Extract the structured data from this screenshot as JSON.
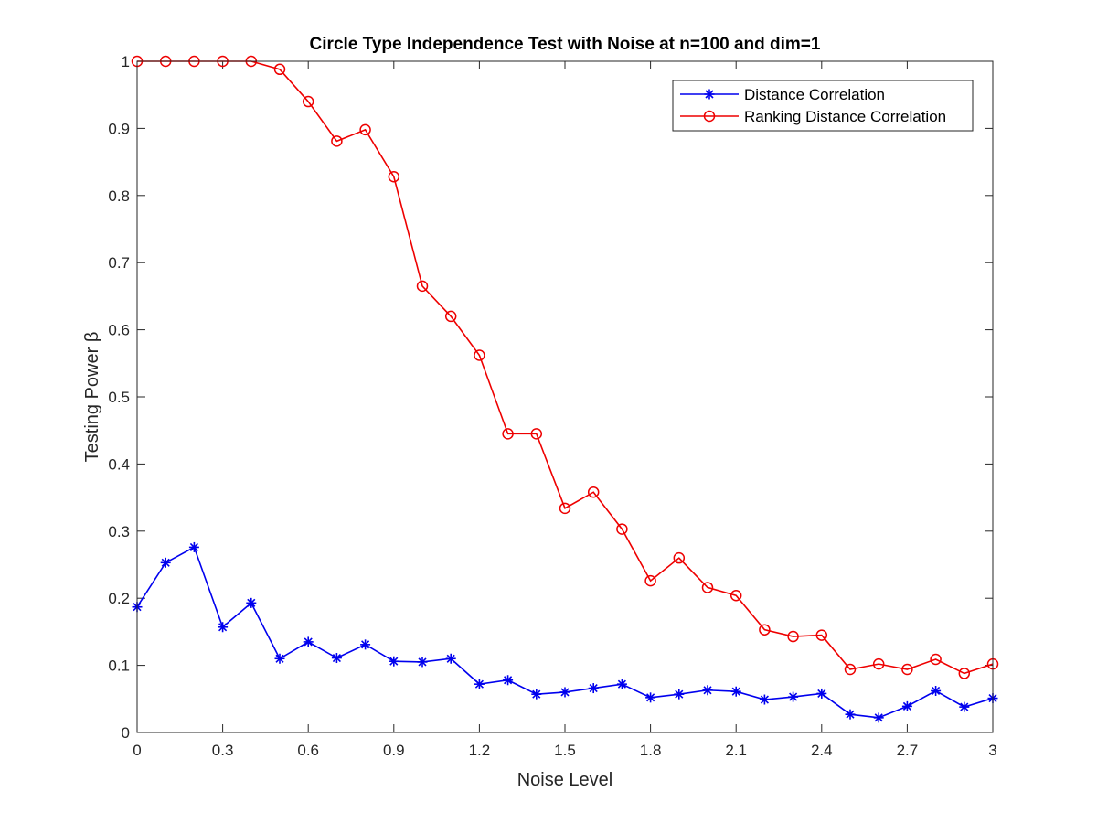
{
  "chart_data": {
    "type": "line",
    "title": "Circle Type Independence Test with Noise at n=100 and dim=1",
    "xlabel": "Noise Level",
    "ylabel": "Testing Power β",
    "xlim": [
      0,
      3
    ],
    "ylim": [
      0,
      1
    ],
    "xticks": [
      "0",
      "0.3",
      "0.6",
      "0.9",
      "1.2",
      "1.5",
      "1.8",
      "2.1",
      "2.4",
      "2.7",
      "3"
    ],
    "xtick_values": [
      0,
      0.3,
      0.6,
      0.9,
      1.2,
      1.5,
      1.8,
      2.1,
      2.4,
      2.7,
      3
    ],
    "yticks": [
      "0",
      "0.1",
      "0.2",
      "0.3",
      "0.4",
      "0.5",
      "0.6",
      "0.7",
      "0.8",
      "0.9",
      "1"
    ],
    "ytick_values": [
      0,
      0.1,
      0.2,
      0.3,
      0.4,
      0.5,
      0.6,
      0.7,
      0.8,
      0.9,
      1
    ],
    "grid": false,
    "legend_position": "top-right",
    "x": [
      0,
      0.1,
      0.2,
      0.3,
      0.4,
      0.5,
      0.6,
      0.7,
      0.8,
      0.9,
      1.0,
      1.1,
      1.2,
      1.3,
      1.4,
      1.5,
      1.6,
      1.7,
      1.8,
      1.9,
      2.0,
      2.1,
      2.2,
      2.3,
      2.4,
      2.5,
      2.6,
      2.7,
      2.8,
      2.9,
      3.0
    ],
    "series": [
      {
        "name": "Distance Correlation",
        "color": "#0000ee",
        "marker": "asterisk",
        "values": [
          0.187,
          0.253,
          0.276,
          0.157,
          0.193,
          0.11,
          0.135,
          0.111,
          0.131,
          0.106,
          0.105,
          0.11,
          0.072,
          0.078,
          0.057,
          0.06,
          0.066,
          0.072,
          0.052,
          0.057,
          0.063,
          0.061,
          0.049,
          0.053,
          0.058,
          0.027,
          0.022,
          0.039,
          0.062,
          0.038,
          0.051
        ]
      },
      {
        "name": "Ranking Distance Correlation",
        "color": "#ee0000",
        "marker": "circle",
        "values": [
          1.0,
          1.0,
          1.0,
          1.0,
          1.0,
          0.988,
          0.94,
          0.881,
          0.898,
          0.828,
          0.665,
          0.62,
          0.562,
          0.445,
          0.445,
          0.334,
          0.358,
          0.303,
          0.226,
          0.26,
          0.216,
          0.204,
          0.153,
          0.143,
          0.145,
          0.094,
          0.102,
          0.094,
          0.109,
          0.088,
          0.102
        ]
      }
    ]
  }
}
